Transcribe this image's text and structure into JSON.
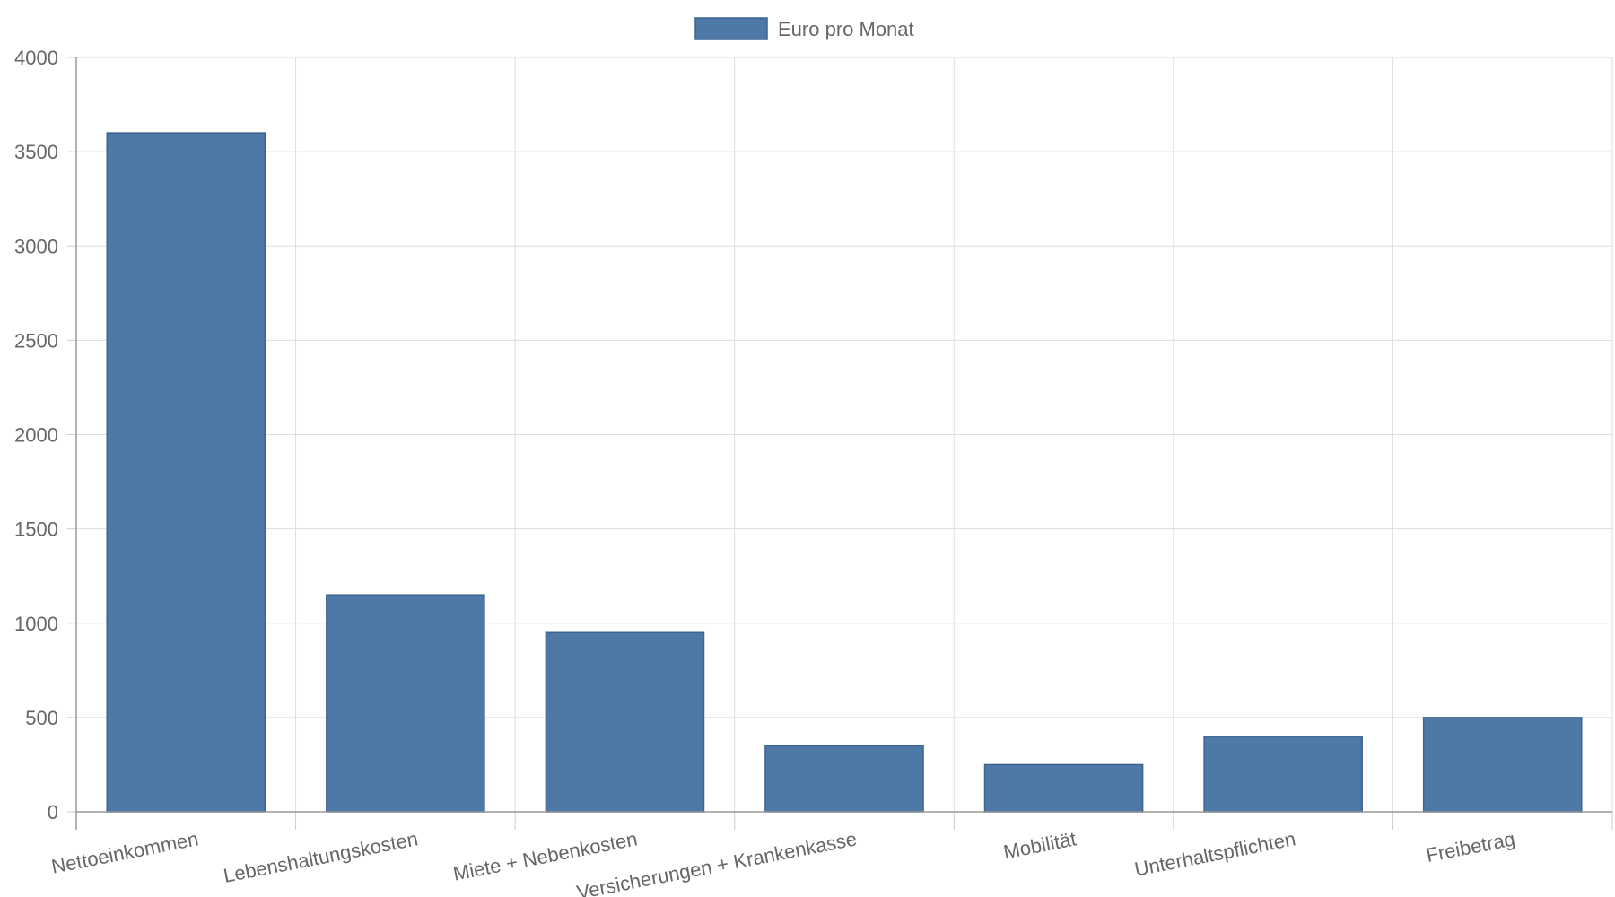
{
  "chart_data": {
    "type": "bar",
    "categories": [
      "Nettoeinkommen",
      "Lebenshaltungskosten",
      "Miete + Nebenkosten",
      "Versicherungen + Krankenkasse",
      "Mobilität",
      "Unterhaltspflichten",
      "Freibetrag"
    ],
    "series": [
      {
        "name": "Euro pro Monat",
        "values": [
          3600,
          1150,
          950,
          350,
          250,
          400,
          500
        ],
        "color": "#4e78a5",
        "border_color": "#3d6390"
      }
    ],
    "title": "",
    "xlabel": "",
    "ylabel": "",
    "ylim": [
      0,
      4000
    ],
    "yticks": [
      "0",
      "500",
      "1000",
      "1500",
      "2000",
      "2500",
      "3000",
      "3500",
      "4000"
    ],
    "grid": true,
    "legend": "top-center"
  }
}
